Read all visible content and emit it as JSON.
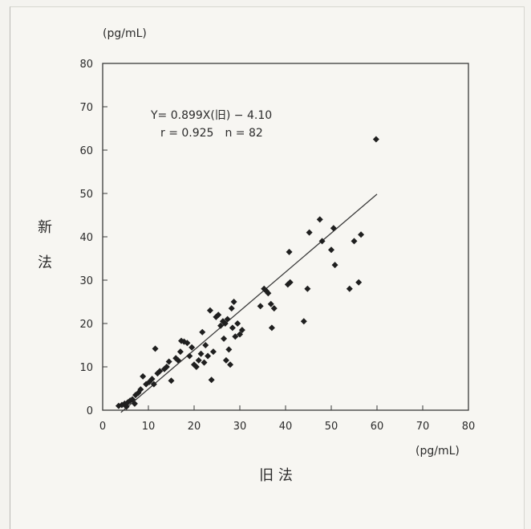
{
  "chart_data": {
    "type": "scatter",
    "xlabel": "旧 法",
    "ylabel": "新 法",
    "x_unit": "(pg/mL)",
    "y_unit": "(pg/mL)",
    "xlim": [
      0,
      80
    ],
    "ylim": [
      0,
      80
    ],
    "xticks": [
      0,
      10,
      20,
      30,
      40,
      50,
      60,
      70,
      80
    ],
    "yticks": [
      0,
      10,
      20,
      30,
      40,
      50,
      60,
      70,
      80
    ],
    "grid": false,
    "annotation_line1": "Y= 0.899X(旧) − 4.10",
    "annotation_line2": "r = 0.925　n = 82",
    "regression": {
      "slope": 0.899,
      "intercept": -4.1,
      "x_range": [
        4,
        60
      ]
    },
    "point_color": "#1f1f1f",
    "points": [
      [
        3.5,
        1.0
      ],
      [
        4.2,
        1.2
      ],
      [
        4.8,
        1.5
      ],
      [
        5.2,
        0.8
      ],
      [
        5.5,
        1.8
      ],
      [
        6.0,
        2.2
      ],
      [
        6.5,
        2.5
      ],
      [
        7.0,
        1.5
      ],
      [
        7.2,
        3.5
      ],
      [
        7.8,
        4.0
      ],
      [
        8.3,
        4.8
      ],
      [
        8.8,
        7.8
      ],
      [
        9.5,
        6.0
      ],
      [
        10.2,
        6.5
      ],
      [
        10.8,
        7.2
      ],
      [
        11.2,
        6.0
      ],
      [
        11.5,
        14.2
      ],
      [
        12.0,
        8.5
      ],
      [
        12.5,
        9.0
      ],
      [
        13.5,
        9.5
      ],
      [
        14.0,
        10.0
      ],
      [
        14.5,
        11.2
      ],
      [
        15.0,
        6.8
      ],
      [
        16.0,
        12.0
      ],
      [
        16.5,
        11.5
      ],
      [
        17.0,
        13.5
      ],
      [
        17.2,
        16.0
      ],
      [
        17.8,
        15.8
      ],
      [
        18.5,
        15.5
      ],
      [
        19.0,
        12.5
      ],
      [
        19.5,
        14.5
      ],
      [
        20.0,
        10.5
      ],
      [
        20.5,
        10.0
      ],
      [
        21.0,
        11.5
      ],
      [
        21.5,
        13.0
      ],
      [
        21.8,
        18.0
      ],
      [
        22.2,
        11.0
      ],
      [
        22.5,
        15.0
      ],
      [
        23.0,
        12.5
      ],
      [
        23.5,
        23.0
      ],
      [
        23.8,
        7.0
      ],
      [
        24.2,
        13.5
      ],
      [
        24.8,
        21.5
      ],
      [
        25.3,
        22.0
      ],
      [
        25.8,
        19.5
      ],
      [
        26.3,
        20.5
      ],
      [
        26.5,
        16.5
      ],
      [
        26.8,
        20.0
      ],
      [
        27.0,
        11.5
      ],
      [
        27.3,
        21.0
      ],
      [
        27.6,
        14.0
      ],
      [
        27.9,
        10.5
      ],
      [
        28.2,
        23.5
      ],
      [
        28.4,
        19.0
      ],
      [
        28.7,
        25.0
      ],
      [
        29.0,
        17.0
      ],
      [
        29.5,
        20.0
      ],
      [
        30.0,
        17.5
      ],
      [
        30.5,
        18.5
      ],
      [
        34.5,
        24.0
      ],
      [
        35.3,
        28.0
      ],
      [
        35.8,
        27.5
      ],
      [
        36.2,
        27.0
      ],
      [
        36.8,
        24.5
      ],
      [
        37.0,
        19.0
      ],
      [
        37.5,
        23.5
      ],
      [
        40.5,
        29.0
      ],
      [
        40.8,
        36.5
      ],
      [
        41.0,
        29.5
      ],
      [
        44.0,
        20.5
      ],
      [
        44.8,
        28.0
      ],
      [
        45.2,
        41.0
      ],
      [
        47.5,
        44.0
      ],
      [
        48.0,
        39.0
      ],
      [
        50.0,
        37.0
      ],
      [
        50.5,
        42.0
      ],
      [
        50.8,
        33.5
      ],
      [
        54.0,
        28.0
      ],
      [
        55.0,
        39.0
      ],
      [
        56.0,
        29.5
      ],
      [
        56.5,
        40.5
      ],
      [
        59.8,
        62.5
      ]
    ]
  }
}
